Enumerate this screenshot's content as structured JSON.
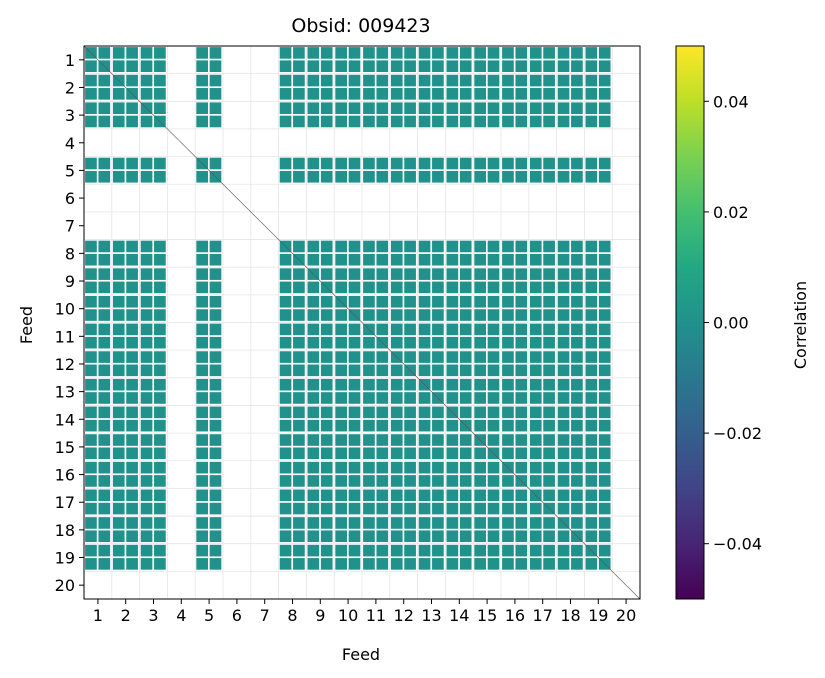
{
  "chart_data": {
    "type": "heatmap",
    "title": "Obsid: 009423",
    "xlabel": "Feed",
    "ylabel": "Feed",
    "x_ticks": [
      "1",
      "2",
      "3",
      "4",
      "5",
      "6",
      "7",
      "8",
      "9",
      "10",
      "11",
      "12",
      "13",
      "14",
      "15",
      "16",
      "17",
      "18",
      "19",
      "20"
    ],
    "y_ticks": [
      "1",
      "2",
      "3",
      "4",
      "5",
      "6",
      "7",
      "8",
      "9",
      "10",
      "11",
      "12",
      "13",
      "14",
      "15",
      "16",
      "17",
      "18",
      "19",
      "20"
    ],
    "feeds": [
      1,
      2,
      3,
      4,
      5,
      6,
      7,
      8,
      9,
      10,
      11,
      12,
      13,
      14,
      15,
      16,
      17,
      18,
      19,
      20
    ],
    "active_feeds": [
      1,
      2,
      3,
      5,
      8,
      9,
      10,
      11,
      12,
      13,
      14,
      15,
      16,
      17,
      18,
      19
    ],
    "inactive_feeds": [
      4,
      6,
      7,
      20
    ],
    "fill_value": 0.0,
    "fill_color": "#21918c",
    "grid": true,
    "colorbar": {
      "label": "Correlation",
      "vmin": -0.05,
      "vmax": 0.05,
      "colormap": "viridis",
      "ticks": [
        0.04,
        0.02,
        0.0,
        -0.02,
        -0.04
      ],
      "tick_labels": [
        "0.04",
        "0.02",
        "0.00",
        "−0.02",
        "−0.04"
      ]
    }
  }
}
